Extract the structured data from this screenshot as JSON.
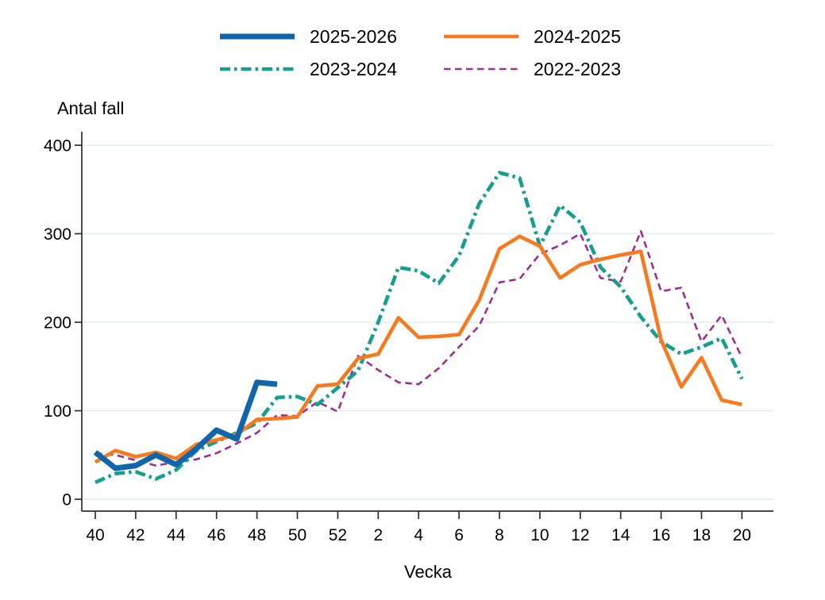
{
  "colors": {
    "series_2025_2026": "#1065ab",
    "series_2024_2025": "#f87a1e",
    "series_2023_2024": "#179e8e",
    "series_2022_2023": "#9a3096",
    "gridline": "#e3ecf2",
    "axis": "#2f2f2f",
    "text": "#000000",
    "background": "#ffffff"
  },
  "chart_data": {
    "type": "line",
    "title": "",
    "ylabel": "Antal fall",
    "xlabel": "Vecka",
    "ylim": [
      0,
      400
    ],
    "y_ticks": [
      0,
      100,
      200,
      300,
      400
    ],
    "grid": "horizontal-light",
    "legend_position": "top",
    "x_tick_step": 2,
    "categories": [
      40,
      41,
      42,
      43,
      44,
      45,
      46,
      47,
      48,
      49,
      50,
      51,
      52,
      1,
      2,
      3,
      4,
      5,
      6,
      7,
      8,
      9,
      10,
      11,
      12,
      13,
      14,
      15,
      16,
      17,
      18,
      19,
      20
    ],
    "series": [
      {
        "name": "2025-2026",
        "color": "#1065ab",
        "style": "solid-thick",
        "values": [
          53,
          35,
          38,
          50,
          39,
          57,
          78,
          68,
          132,
          130,
          null,
          null,
          null,
          null,
          null,
          null,
          null,
          null,
          null,
          null,
          null,
          null,
          null,
          null,
          null,
          null,
          null,
          null,
          null,
          null,
          null,
          null,
          null
        ]
      },
      {
        "name": "2024-2025",
        "color": "#f87a1e",
        "style": "solid",
        "values": [
          42,
          55,
          48,
          53,
          46,
          62,
          67,
          73,
          90,
          91,
          93,
          128,
          130,
          159,
          164,
          205,
          183,
          184,
          186,
          225,
          283,
          297,
          286,
          250,
          265,
          271,
          276,
          280,
          180,
          127,
          160,
          112,
          107
        ]
      },
      {
        "name": "2023-2024",
        "color": "#179e8e",
        "style": "dash-dot",
        "values": [
          19,
          29,
          31,
          23,
          33,
          55,
          65,
          75,
          86,
          115,
          116,
          107,
          126,
          145,
          200,
          262,
          258,
          244,
          275,
          334,
          369,
          363,
          286,
          332,
          313,
          262,
          240,
          206,
          178,
          164,
          172,
          182,
          136
        ]
      },
      {
        "name": "2022-2023",
        "color": "#9a3096",
        "style": "dashed",
        "values": [
          52,
          50,
          44,
          38,
          42,
          45,
          52,
          63,
          75,
          95,
          94,
          110,
          99,
          162,
          146,
          132,
          130,
          148,
          172,
          196,
          245,
          249,
          277,
          287,
          300,
          250,
          246,
          303,
          235,
          239,
          178,
          208,
          160
        ]
      }
    ]
  }
}
